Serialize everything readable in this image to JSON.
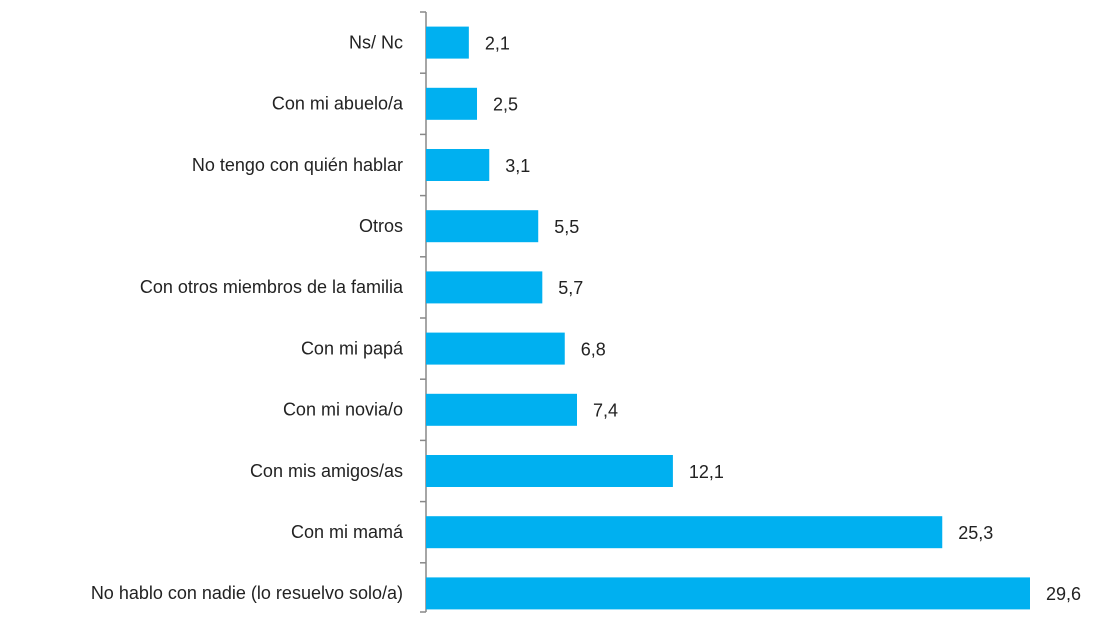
{
  "chart_data": {
    "type": "bar",
    "orientation": "horizontal",
    "categories": [
      "Ns/ Nc",
      "Con mi abuelo/a",
      "No tengo con quién hablar",
      "Otros",
      "Con otros miembros de la familia",
      "Con mi papá",
      "Con mi novia/o",
      "Con mis amigos/as",
      "Con mi mamá",
      "No hablo con nadie (lo resuelvo solo/a)"
    ],
    "values": [
      2.1,
      2.5,
      3.1,
      5.5,
      5.7,
      6.8,
      7.4,
      12.1,
      25.3,
      29.6
    ],
    "value_labels": [
      "2,1",
      "2,5",
      "3,1",
      "5,5",
      "5,7",
      "6,8",
      "7,4",
      "12,1",
      "25,3",
      "29,6"
    ],
    "color": "#00b0f0"
  }
}
